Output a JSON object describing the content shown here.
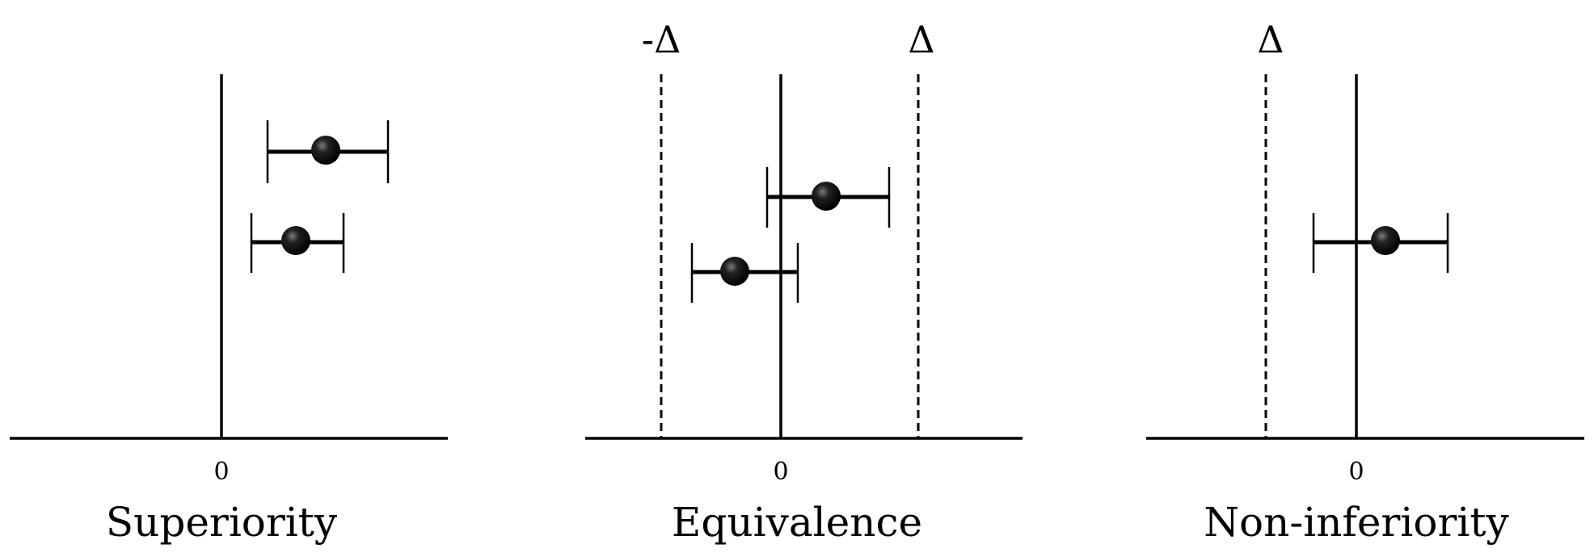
{
  "panels": [
    {
      "title": "Superiority",
      "tick_label": "0",
      "margin_labels": [],
      "estimates": [
        {
          "estimate": 0.55,
          "ci": [
            0.25,
            0.9
          ]
        },
        {
          "estimate": 0.4,
          "ci": [
            0.17,
            0.65
          ]
        }
      ]
    },
    {
      "title": "Equivalence",
      "tick_label": "0",
      "margin_labels": [
        "-Δ",
        "Δ"
      ],
      "estimates": [
        {
          "estimate": 0.25,
          "ci": [
            -0.07,
            0.55
          ]
        },
        {
          "estimate": -0.25,
          "ci": [
            -0.5,
            0.05
          ]
        }
      ]
    },
    {
      "title": "Non-inferiority",
      "tick_label": "0",
      "margin_labels": [
        "Δ"
      ],
      "estimates": [
        {
          "estimate": 0.15,
          "ci": [
            -0.2,
            0.45
          ]
        }
      ]
    }
  ]
}
